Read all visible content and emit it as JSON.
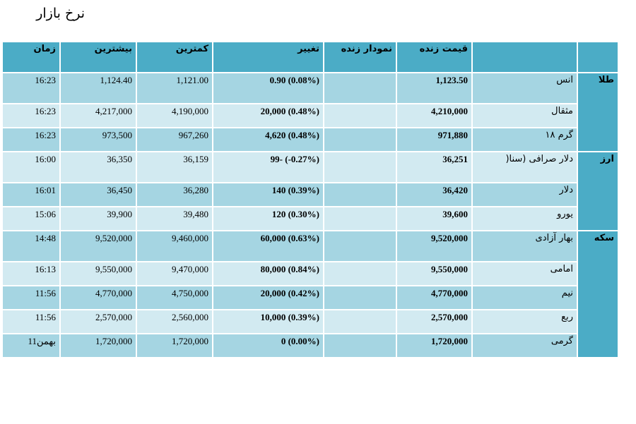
{
  "title": "نرخ بازار",
  "headers": {
    "time": "زمان",
    "high": "بیشترین",
    "low": "کمترین",
    "change": "تغییر",
    "chart": "نمودار زنده",
    "live_price": "قیمت زنده",
    "name": "",
    "group": ""
  },
  "groups": [
    {
      "label": "طلا",
      "rows": [
        {
          "name": "انس",
          "live": "1,123.50",
          "change": "0.90 (0.08%)",
          "low": "1,121.00",
          "high": "1,124.40",
          "time": "16:23"
        },
        {
          "name": "مثقال",
          "live": "4,210,000",
          "change": "20,000 (0.48%)",
          "low": "4,190,000",
          "high": "4,217,000",
          "time": "16:23"
        },
        {
          "name": "گرم ۱۸",
          "live": "971,880",
          "change": "4,620 (0.48%)",
          "low": "967,260",
          "high": "973,500",
          "time": "16:23"
        }
      ]
    },
    {
      "label": "ارز",
      "rows": [
        {
          "name": "دلار صرافی (سنا(",
          "live": "36,251",
          "change": "99- (-0.27%)",
          "low": "36,159",
          "high": "36,350",
          "time": "16:00"
        },
        {
          "name": "دلار",
          "live": "36,420",
          "change": "140 (0.39%)",
          "low": "36,280",
          "high": "36,450",
          "time": "16:01"
        },
        {
          "name": "یورو",
          "live": "39,600",
          "change": "120 (0.30%)",
          "low": "39,480",
          "high": "39,900",
          "time": "15:06"
        }
      ]
    },
    {
      "label": "سکه",
      "rows": [
        {
          "name": "بهار آزادی",
          "live": "9,520,000",
          "change": "60,000 (0.63%)",
          "low": "9,460,000",
          "high": "9,520,000",
          "time": "14:48"
        },
        {
          "name": "امامی",
          "live": "9,550,000",
          "change": "80,000 (0.84%)",
          "low": "9,470,000",
          "high": "9,550,000",
          "time": "16:13"
        },
        {
          "name": "نیم",
          "live": "4,770,000",
          "change": "20,000 (0.42%)",
          "low": "4,750,000",
          "high": "4,770,000",
          "time": "11:56"
        },
        {
          "name": "ربع",
          "live": "2,570,000",
          "change": "10,000 (0.39%)",
          "low": "2,560,000",
          "high": "2,570,000",
          "time": "11:56"
        },
        {
          "name": "گرمی",
          "live": "1,720,000",
          "change": "0 (0.00%)",
          "low": "1,720,000",
          "high": "1,720,000",
          "time": "11بهمن"
        }
      ]
    }
  ]
}
